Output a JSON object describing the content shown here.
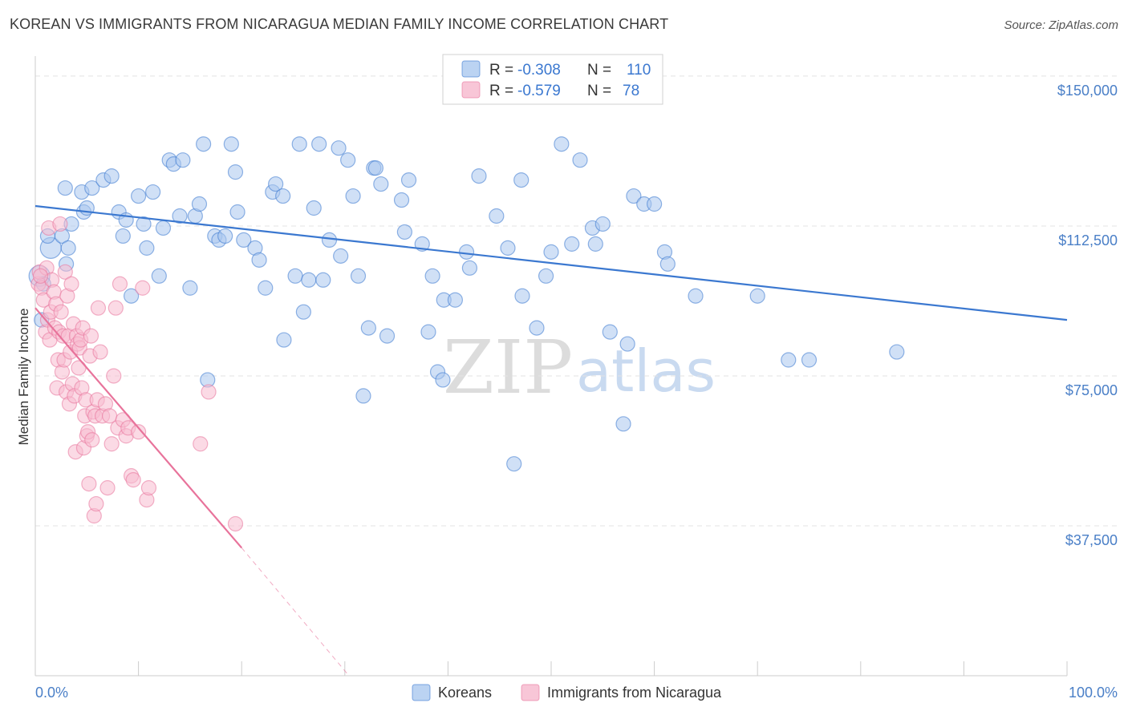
{
  "title": "KOREAN VS IMMIGRANTS FROM NICARAGUA MEDIAN FAMILY INCOME CORRELATION CHART",
  "source": "Source: ZipAtlas.com",
  "watermark": {
    "zip": "ZIP",
    "atlas": "atlas"
  },
  "legend": {
    "rows": [
      {
        "r_label": "R =",
        "r_value": "-0.308",
        "n_label": "N =",
        "n_value": "110",
        "color": "#9ec0ec"
      },
      {
        "r_label": "R =",
        "r_value": "-0.579",
        "n_label": "N =",
        "n_value": "78",
        "color": "#f5aec6"
      }
    ]
  },
  "bottom_legend": [
    {
      "label": "Koreans",
      "color": "#9ec0ec"
    },
    {
      "label": "Immigrants from Nicaragua",
      "color": "#f5aec6"
    }
  ],
  "chart_data": {
    "type": "scatter",
    "title": "KOREAN VS IMMIGRANTS FROM NICARAGUA MEDIAN FAMILY INCOME CORRELATION CHART",
    "xlabel": "",
    "ylabel": "Median Family Income",
    "xlim": [
      0,
      100
    ],
    "ylim": [
      0,
      155000
    ],
    "x_tick_labels": [
      "0.0%",
      "100.0%"
    ],
    "y_ticks": [
      37500,
      75000,
      112500,
      150000
    ],
    "y_tick_labels": [
      "$37,500",
      "$75,000",
      "$112,500",
      "$150,000"
    ],
    "grid": true,
    "series": [
      {
        "name": "Koreans",
        "color": "#3b78d0",
        "fill": "#a9c7ee",
        "points": [
          [
            0.4,
            100
          ],
          [
            0.6,
            89
          ],
          [
            1.5,
            107
          ],
          [
            2.6,
            110
          ],
          [
            2.9,
            122
          ],
          [
            3.0,
            103
          ],
          [
            3.5,
            113
          ],
          [
            4.5,
            121
          ],
          [
            4.7,
            116
          ],
          [
            5.0,
            117
          ],
          [
            5.5,
            122
          ],
          [
            6.6,
            124
          ],
          [
            7.4,
            125
          ],
          [
            8.1,
            116
          ],
          [
            8.5,
            110
          ],
          [
            8.8,
            114
          ],
          [
            9.3,
            95
          ],
          [
            10.0,
            120
          ],
          [
            10.5,
            113
          ],
          [
            10.8,
            107
          ],
          [
            11.4,
            121
          ],
          [
            12.0,
            100
          ],
          [
            12.4,
            112
          ],
          [
            13.0,
            129
          ],
          [
            13.4,
            128
          ],
          [
            14.0,
            115
          ],
          [
            14.3,
            129
          ],
          [
            15.0,
            97
          ],
          [
            15.5,
            115
          ],
          [
            15.9,
            118
          ],
          [
            16.3,
            133
          ],
          [
            16.7,
            74
          ],
          [
            17.4,
            110
          ],
          [
            17.8,
            109
          ],
          [
            18.4,
            110
          ],
          [
            19.0,
            133
          ],
          [
            19.4,
            126
          ],
          [
            19.6,
            116
          ],
          [
            20.2,
            109
          ],
          [
            21.3,
            107
          ],
          [
            21.7,
            104
          ],
          [
            22.3,
            97
          ],
          [
            23.0,
            121
          ],
          [
            23.3,
            123
          ],
          [
            24.0,
            120
          ],
          [
            24.1,
            84
          ],
          [
            25.2,
            100
          ],
          [
            25.6,
            133
          ],
          [
            26.0,
            91
          ],
          [
            26.5,
            99
          ],
          [
            27.0,
            117
          ],
          [
            27.5,
            133
          ],
          [
            27.9,
            99
          ],
          [
            28.5,
            109
          ],
          [
            29.4,
            132
          ],
          [
            29.6,
            105
          ],
          [
            30.3,
            129
          ],
          [
            30.8,
            120
          ],
          [
            31.3,
            100
          ],
          [
            31.8,
            70
          ],
          [
            32.3,
            87
          ],
          [
            32.8,
            127
          ],
          [
            33.0,
            127
          ],
          [
            33.5,
            123
          ],
          [
            34.1,
            85
          ],
          [
            35.5,
            119
          ],
          [
            35.8,
            111
          ],
          [
            36.2,
            124
          ],
          [
            37.5,
            108
          ],
          [
            38.1,
            86
          ],
          [
            38.5,
            100
          ],
          [
            39.0,
            76
          ],
          [
            39.5,
            74
          ],
          [
            39.6,
            94
          ],
          [
            40.7,
            94
          ],
          [
            41.8,
            106
          ],
          [
            42.1,
            102
          ],
          [
            43.0,
            125
          ],
          [
            44.7,
            115
          ],
          [
            45.8,
            107
          ],
          [
            46.4,
            53
          ],
          [
            47.1,
            124
          ],
          [
            47.2,
            95
          ],
          [
            48.6,
            87
          ],
          [
            49.5,
            100
          ],
          [
            50.0,
            106
          ],
          [
            51.0,
            133
          ],
          [
            51.6,
            147
          ],
          [
            52.0,
            108
          ],
          [
            52.8,
            129
          ],
          [
            54.0,
            112
          ],
          [
            54.3,
            108
          ],
          [
            55.0,
            113
          ],
          [
            55.7,
            86
          ],
          [
            57.0,
            63
          ],
          [
            57.4,
            83
          ],
          [
            58.0,
            120
          ],
          [
            59.0,
            118
          ],
          [
            60.0,
            118
          ],
          [
            61.0,
            106
          ],
          [
            61.3,
            103
          ],
          [
            64.0,
            95
          ],
          [
            70.0,
            95
          ],
          [
            73.0,
            79
          ],
          [
            75.0,
            79
          ],
          [
            83.5,
            81
          ],
          [
            0.8,
            98
          ],
          [
            1.2,
            110
          ],
          [
            3.2,
            107
          ]
        ]
      },
      {
        "name": "Immigrants from Nicaragua",
        "color": "#e8739b",
        "fill": "#f7bcd0",
        "points": [
          [
            0.3,
            98
          ],
          [
            0.4,
            101
          ],
          [
            0.6,
            97
          ],
          [
            0.8,
            94
          ],
          [
            1.0,
            86
          ],
          [
            1.1,
            102
          ],
          [
            1.2,
            89
          ],
          [
            1.3,
            112
          ],
          [
            1.4,
            84
          ],
          [
            1.5,
            91
          ],
          [
            1.6,
            99
          ],
          [
            1.8,
            96
          ],
          [
            1.9,
            87
          ],
          [
            2.0,
            93
          ],
          [
            2.1,
            72
          ],
          [
            2.2,
            79
          ],
          [
            2.3,
            86
          ],
          [
            2.4,
            113
          ],
          [
            2.5,
            91
          ],
          [
            2.6,
            76
          ],
          [
            2.7,
            85
          ],
          [
            2.8,
            79
          ],
          [
            2.9,
            101
          ],
          [
            3.0,
            71
          ],
          [
            3.1,
            95
          ],
          [
            3.2,
            85
          ],
          [
            3.3,
            68
          ],
          [
            3.4,
            81
          ],
          [
            3.5,
            98
          ],
          [
            3.6,
            73
          ],
          [
            3.7,
            88
          ],
          [
            3.8,
            70
          ],
          [
            3.9,
            56
          ],
          [
            4.0,
            85
          ],
          [
            4.1,
            83
          ],
          [
            4.2,
            77
          ],
          [
            4.3,
            82
          ],
          [
            4.4,
            84
          ],
          [
            4.5,
            72
          ],
          [
            4.6,
            87
          ],
          [
            4.7,
            57
          ],
          [
            4.8,
            65
          ],
          [
            4.9,
            69
          ],
          [
            5.0,
            60
          ],
          [
            5.1,
            61
          ],
          [
            5.2,
            48
          ],
          [
            5.3,
            80
          ],
          [
            5.4,
            85
          ],
          [
            5.5,
            59
          ],
          [
            5.6,
            66
          ],
          [
            5.7,
            40
          ],
          [
            5.8,
            65
          ],
          [
            5.9,
            43
          ],
          [
            6.0,
            69
          ],
          [
            6.1,
            92
          ],
          [
            6.3,
            81
          ],
          [
            6.5,
            65
          ],
          [
            6.8,
            68
          ],
          [
            7.0,
            47
          ],
          [
            7.2,
            65
          ],
          [
            7.4,
            58
          ],
          [
            7.6,
            75
          ],
          [
            7.8,
            92
          ],
          [
            8.0,
            62
          ],
          [
            8.2,
            98
          ],
          [
            8.5,
            64
          ],
          [
            8.8,
            60
          ],
          [
            9.0,
            62
          ],
          [
            9.3,
            50
          ],
          [
            9.5,
            49
          ],
          [
            10.0,
            61
          ],
          [
            10.4,
            97
          ],
          [
            10.8,
            44
          ],
          [
            11.0,
            47
          ],
          [
            16.0,
            58
          ],
          [
            16.8,
            71
          ],
          [
            19.4,
            38
          ],
          [
            0.5,
            100
          ]
        ]
      }
    ],
    "trendlines": [
      {
        "series": "Koreans",
        "x": [
          0,
          100
        ],
        "y": [
          117500,
          89000
        ],
        "style": "solid"
      },
      {
        "series": "Immigrants from Nicaragua",
        "x": [
          0,
          20
        ],
        "y": [
          92000,
          32000
        ],
        "style": "solid"
      },
      {
        "series": "Immigrants from Nicaragua",
        "x": [
          20,
          30.4
        ],
        "y": [
          32000,
          0
        ],
        "style": "dashed"
      }
    ]
  }
}
